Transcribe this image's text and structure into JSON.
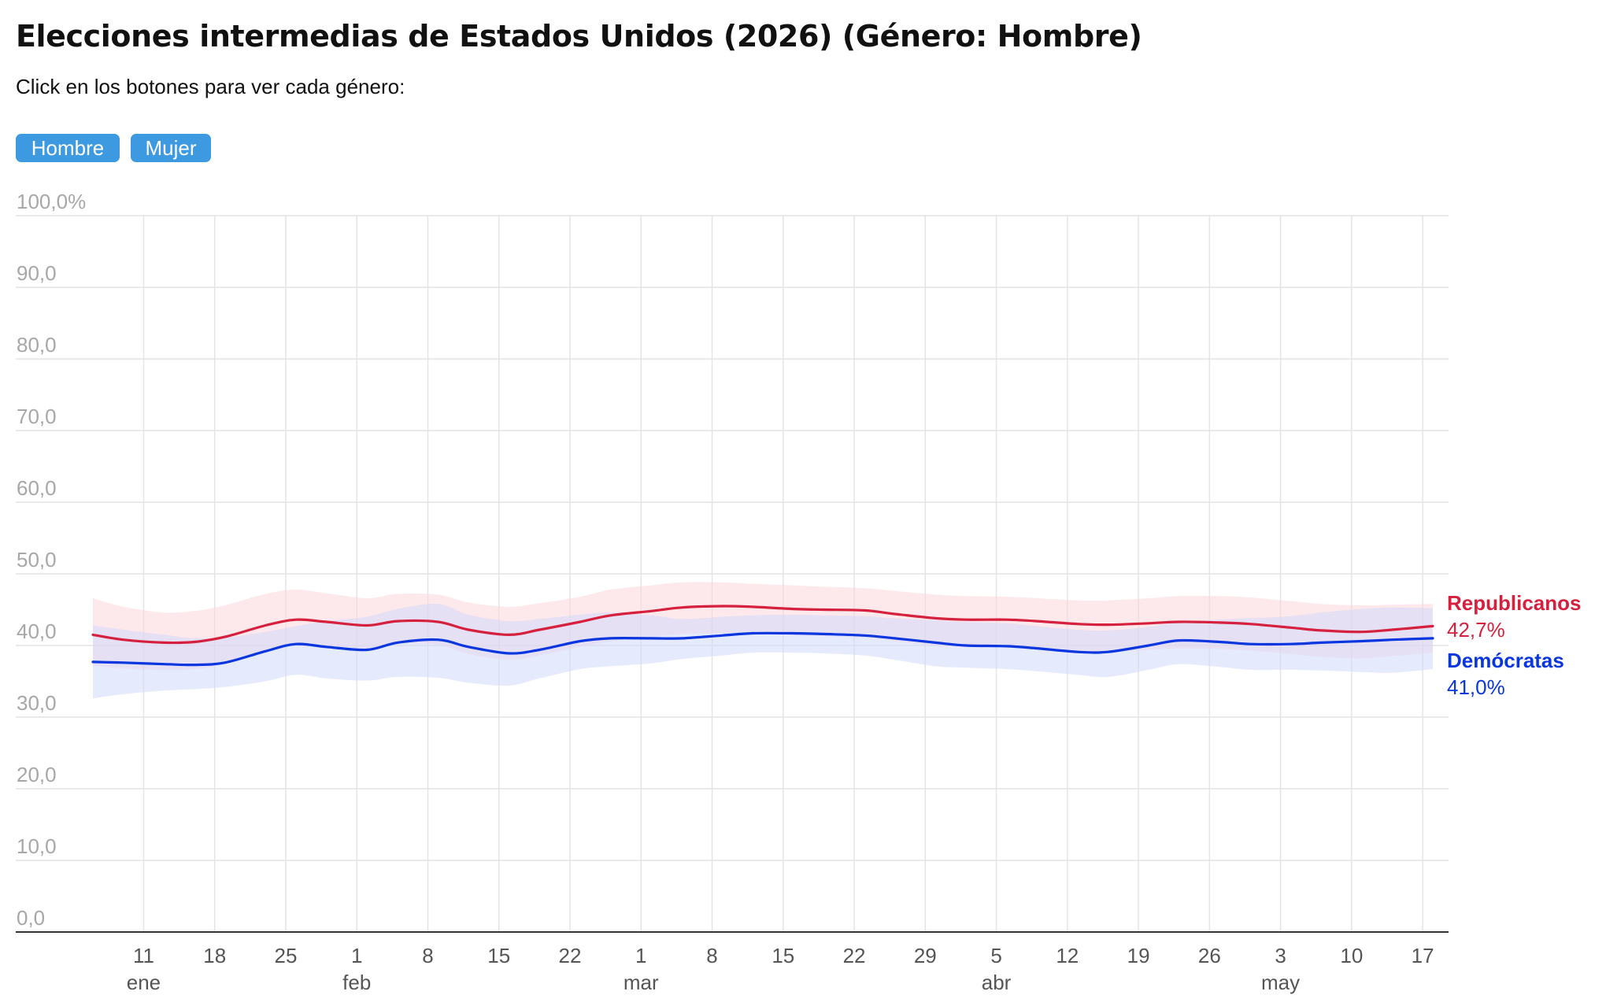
{
  "header": {
    "title": "Elecciones intermedias de Estados Unidos (2026) (Género: Hombre)",
    "subtitle": "Click en los botones para ver cada género:"
  },
  "buttons": {
    "hombre": "Hombre",
    "mujer": "Mujer"
  },
  "chart_data": {
    "type": "line",
    "ylim": [
      0,
      100
    ],
    "yticks": [
      "100,0%",
      "90,0",
      "80,0",
      "70,0",
      "60,0",
      "50,0",
      "40,0",
      "30,0",
      "20,0",
      "10,0",
      "0,0"
    ],
    "grid": true,
    "x_dates": [
      "2026-01-06",
      "2026-01-09",
      "2026-01-13",
      "2026-01-16",
      "2026-01-19",
      "2026-01-23",
      "2026-01-26",
      "2026-01-29",
      "2026-02-02",
      "2026-02-05",
      "2026-02-09",
      "2026-02-12",
      "2026-02-16",
      "2026-02-19",
      "2026-02-23",
      "2026-02-26",
      "2026-03-02",
      "2026-03-05",
      "2026-03-09",
      "2026-03-12",
      "2026-03-16",
      "2026-03-19",
      "2026-03-23",
      "2026-03-26",
      "2026-03-30",
      "2026-04-02",
      "2026-04-06",
      "2026-04-09",
      "2026-04-13",
      "2026-04-16",
      "2026-04-20",
      "2026-04-23",
      "2026-04-27",
      "2026-04-30",
      "2026-05-04",
      "2026-05-07",
      "2026-05-11",
      "2026-05-14",
      "2026-05-18"
    ],
    "x_tick_labels": [
      "11",
      "18",
      "25",
      "1",
      "8",
      "15",
      "22",
      "1",
      "8",
      "15",
      "22",
      "29",
      "5",
      "12",
      "19",
      "26",
      "3",
      "10",
      "17"
    ],
    "x_tick_dates": [
      "2026-01-11",
      "2026-01-18",
      "2026-01-25",
      "2026-02-01",
      "2026-02-08",
      "2026-02-15",
      "2026-02-22",
      "2026-03-01",
      "2026-03-08",
      "2026-03-15",
      "2026-03-22",
      "2026-03-29",
      "2026-04-05",
      "2026-04-12",
      "2026-04-19",
      "2026-04-26",
      "2026-05-03",
      "2026-05-10",
      "2026-05-17"
    ],
    "month_labels": [
      {
        "label": "ene",
        "date": "2026-01-11"
      },
      {
        "label": "feb",
        "date": "2026-02-01"
      },
      {
        "label": "mar",
        "date": "2026-03-01"
      },
      {
        "label": "abr",
        "date": "2026-04-05"
      },
      {
        "label": "may",
        "date": "2026-05-03"
      }
    ],
    "series": [
      {
        "name": "Republicanos",
        "final_label": "42,7%",
        "color": "#d5203e",
        "band_color": "#fbd5da",
        "values": [
          41.5,
          40.8,
          40.4,
          40.5,
          41.2,
          42.8,
          43.6,
          43.3,
          42.8,
          43.4,
          43.3,
          42.2,
          41.5,
          42.2,
          43.3,
          44.2,
          44.8,
          45.3,
          45.5,
          45.4,
          45.1,
          45.0,
          44.9,
          44.4,
          43.8,
          43.6,
          43.6,
          43.4,
          43.0,
          42.9,
          43.1,
          43.3,
          43.2,
          43.0,
          42.5,
          42.1,
          41.9,
          42.2,
          42.7
        ],
        "lower": [
          37.2,
          36.8,
          36.6,
          36.7,
          37.4,
          39.0,
          40.1,
          40.0,
          39.6,
          40.3,
          40.1,
          38.8,
          38.0,
          38.6,
          39.8,
          40.6,
          41.2,
          41.6,
          41.7,
          41.6,
          41.4,
          41.3,
          41.1,
          40.6,
          40.0,
          39.9,
          39.8,
          39.6,
          39.2,
          39.1,
          39.4,
          39.6,
          39.5,
          39.3,
          38.8,
          38.4,
          38.2,
          38.5,
          39.0
        ],
        "upper": [
          46.6,
          45.4,
          44.6,
          44.8,
          45.6,
          47.2,
          47.8,
          47.3,
          46.6,
          47.2,
          47.1,
          46.0,
          45.4,
          45.9,
          46.8,
          47.8,
          48.4,
          48.8,
          48.8,
          48.6,
          48.4,
          48.2,
          48.0,
          47.6,
          47.1,
          46.9,
          46.8,
          46.6,
          46.3,
          46.3,
          46.6,
          46.9,
          46.9,
          46.7,
          46.2,
          45.8,
          45.6,
          45.7,
          45.8
        ]
      },
      {
        "name": "Demócratas",
        "final_label": "41,0%",
        "color": "#0a36e0",
        "band_color": "#d2d9fb",
        "values": [
          37.7,
          37.6,
          37.4,
          37.3,
          37.6,
          39.2,
          40.2,
          39.8,
          39.4,
          40.4,
          40.8,
          39.8,
          38.9,
          39.4,
          40.6,
          41.0,
          41.0,
          41.0,
          41.4,
          41.7,
          41.7,
          41.6,
          41.4,
          41.0,
          40.4,
          40.0,
          39.9,
          39.6,
          39.1,
          39.1,
          40.0,
          40.7,
          40.5,
          40.2,
          40.2,
          40.4,
          40.6,
          40.8,
          41.0
        ],
        "lower": [
          32.6,
          33.2,
          33.7,
          33.9,
          34.2,
          35.0,
          35.9,
          35.4,
          35.1,
          35.6,
          35.5,
          34.8,
          34.4,
          35.4,
          36.7,
          37.1,
          37.5,
          38.1,
          38.6,
          39.0,
          39.0,
          38.9,
          38.6,
          38.0,
          37.1,
          36.9,
          36.7,
          36.4,
          35.9,
          35.6,
          36.6,
          37.4,
          37.0,
          36.6,
          36.6,
          36.5,
          36.3,
          36.2,
          36.7
        ],
        "upper": [
          42.8,
          42.2,
          41.5,
          41.0,
          41.1,
          41.9,
          42.7,
          43.4,
          44.0,
          45.1,
          45.8,
          44.3,
          43.4,
          43.7,
          44.3,
          44.6,
          44.2,
          43.7,
          44.0,
          44.2,
          44.3,
          44.2,
          44.1,
          43.8,
          43.5,
          43.3,
          43.1,
          42.7,
          42.2,
          42.1,
          42.6,
          43.3,
          43.6,
          43.8,
          44.1,
          44.6,
          45.1,
          45.3,
          45.2
        ]
      }
    ]
  }
}
